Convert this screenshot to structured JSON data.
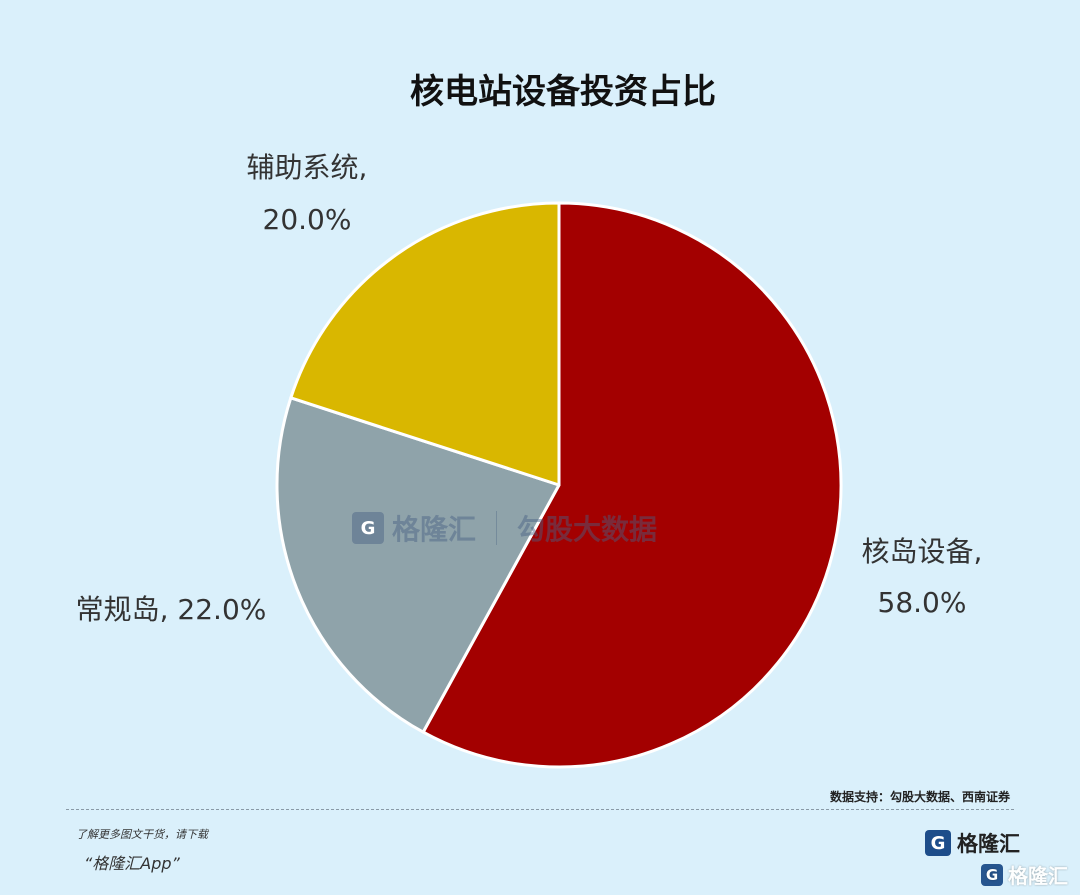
{
  "chart_data": {
    "type": "pie",
    "title": "核电站设备投资占比",
    "categories": [
      "核岛设备",
      "常规岛",
      "辅助系统"
    ],
    "values": [
      58.0,
      22.0,
      20.0
    ],
    "labels": [
      "核岛设备, 58.0%",
      "常规岛, 22.0%",
      "辅助系统, 20.0%"
    ],
    "colors": [
      "#a30000",
      "#8fa3aa",
      "#d9b700"
    ],
    "start_angle_deg": 0,
    "direction": "clockwise",
    "legend": "none"
  },
  "source": "数据支持：勾股大数据、西南证券",
  "footer": {
    "line1": "了解更多图文干货，请下载",
    "line2": "“格隆汇App”",
    "logo_text": "格隆汇",
    "logo_glyph": "G"
  },
  "watermark": {
    "center_brand": "格隆汇",
    "center_product": "勾股大数据",
    "corner_brand": "格隆汇"
  }
}
